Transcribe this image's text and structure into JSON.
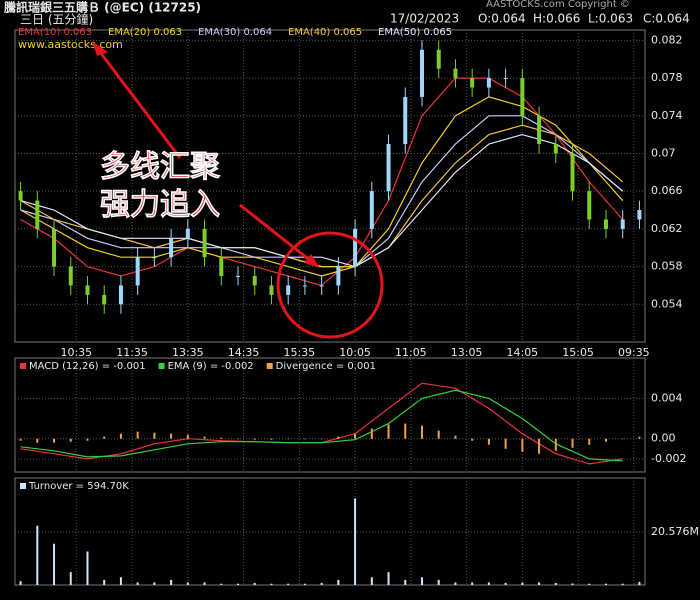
{
  "chart_data": [
    {
      "type": "candlestick",
      "title": "騰訊瑞銀三五購Ｂ (@EC) (12725)",
      "date": "17/02/2023",
      "ohlc": [
        "O:0.064",
        "H:0.066",
        "L:0.063",
        "C:0.064"
      ],
      "subtitle": "三日 (五分鐘)",
      "watermark": "www.aastocks.com",
      "copyright": "AASTOCKS.com Copyright ©",
      "annotations": [
        "多线汇聚",
        "强力追入"
      ],
      "up_color": "#9fd8ff",
      "down_color": "#7ccf2a",
      "x": [
        0,
        3,
        6,
        9,
        12,
        15,
        18,
        21,
        24,
        27,
        30,
        33,
        36,
        39,
        42,
        45,
        48,
        51,
        54,
        57,
        60,
        63,
        66,
        69,
        72,
        75,
        78,
        81,
        84,
        87,
        90,
        93,
        96,
        99,
        102,
        105,
        108,
        111
      ],
      "open": [
        0.066,
        0.065,
        0.062,
        0.058,
        0.056,
        0.055,
        0.054,
        0.056,
        0.059,
        0.059,
        0.061,
        0.062,
        0.059,
        0.057,
        0.057,
        0.056,
        0.055,
        0.056,
        0.056,
        0.056,
        0.058,
        0.062,
        0.066,
        0.071,
        0.076,
        0.081,
        0.079,
        0.078,
        0.077,
        0.078,
        0.078,
        0.074,
        0.071,
        0.07,
        0.066,
        0.063,
        0.062,
        0.063
      ],
      "high": [
        0.067,
        0.066,
        0.063,
        0.059,
        0.057,
        0.056,
        0.057,
        0.06,
        0.06,
        0.062,
        0.063,
        0.063,
        0.06,
        0.058,
        0.058,
        0.057,
        0.057,
        0.057,
        0.057,
        0.059,
        0.063,
        0.067,
        0.072,
        0.077,
        0.082,
        0.082,
        0.08,
        0.079,
        0.079,
        0.079,
        0.079,
        0.075,
        0.072,
        0.071,
        0.067,
        0.064,
        0.064,
        0.065
      ],
      "low": [
        0.064,
        0.061,
        0.057,
        0.055,
        0.054,
        0.053,
        0.053,
        0.055,
        0.058,
        0.058,
        0.06,
        0.058,
        0.056,
        0.056,
        0.055,
        0.054,
        0.054,
        0.055,
        0.055,
        0.055,
        0.057,
        0.061,
        0.065,
        0.07,
        0.075,
        0.078,
        0.077,
        0.076,
        0.076,
        0.077,
        0.073,
        0.07,
        0.069,
        0.065,
        0.062,
        0.061,
        0.061,
        0.062
      ],
      "close": [
        0.065,
        0.062,
        0.058,
        0.056,
        0.055,
        0.054,
        0.056,
        0.059,
        0.059,
        0.061,
        0.062,
        0.059,
        0.057,
        0.057,
        0.056,
        0.055,
        0.056,
        0.056,
        0.056,
        0.058,
        0.062,
        0.066,
        0.071,
        0.076,
        0.081,
        0.079,
        0.078,
        0.077,
        0.078,
        0.078,
        0.074,
        0.071,
        0.07,
        0.066,
        0.063,
        0.062,
        0.063,
        0.064
      ],
      "series": [
        {
          "name": "EMA(10) 0.063",
          "color": "#e8343a",
          "x": [
            0,
            6,
            12,
            18,
            24,
            30,
            36,
            42,
            48,
            54,
            60,
            66,
            72,
            78,
            84,
            90,
            96,
            102,
            108
          ],
          "values": [
            0.063,
            0.061,
            0.058,
            0.057,
            0.058,
            0.06,
            0.059,
            0.058,
            0.057,
            0.056,
            0.059,
            0.065,
            0.074,
            0.078,
            0.078,
            0.076,
            0.072,
            0.067,
            0.063
          ]
        },
        {
          "name": "EMA(20) 0.063",
          "color": "#f2d21e",
          "x": [
            0,
            6,
            12,
            18,
            24,
            30,
            36,
            42,
            48,
            54,
            60,
            66,
            72,
            78,
            84,
            90,
            96,
            102,
            108
          ],
          "values": [
            0.064,
            0.062,
            0.06,
            0.059,
            0.059,
            0.06,
            0.059,
            0.059,
            0.058,
            0.057,
            0.058,
            0.062,
            0.069,
            0.074,
            0.076,
            0.075,
            0.073,
            0.069,
            0.065
          ]
        },
        {
          "name": "EMA(30) 0.064",
          "color": "#c8c8ff",
          "x": [
            0,
            6,
            12,
            18,
            24,
            30,
            36,
            42,
            48,
            54,
            60,
            66,
            72,
            78,
            84,
            90,
            96,
            102,
            108
          ],
          "values": [
            0.064,
            0.063,
            0.061,
            0.06,
            0.06,
            0.06,
            0.06,
            0.059,
            0.059,
            0.058,
            0.058,
            0.061,
            0.067,
            0.071,
            0.074,
            0.074,
            0.072,
            0.069,
            0.066
          ]
        },
        {
          "name": "EMA(40) 0.065",
          "color": "#f5c04a",
          "x": [
            0,
            6,
            12,
            18,
            24,
            30,
            36,
            42,
            48,
            54,
            60,
            66,
            72,
            78,
            84,
            90,
            96,
            102,
            108
          ],
          "values": [
            0.065,
            0.063,
            0.062,
            0.061,
            0.06,
            0.061,
            0.06,
            0.06,
            0.059,
            0.058,
            0.058,
            0.06,
            0.065,
            0.069,
            0.072,
            0.073,
            0.072,
            0.07,
            0.067
          ]
        },
        {
          "name": "EMA(50) 0.065",
          "color": "#e6e0ff",
          "x": [
            0,
            6,
            12,
            18,
            24,
            30,
            36,
            42,
            48,
            54,
            60,
            66,
            72,
            78,
            84,
            90,
            96,
            102,
            108
          ],
          "values": [
            0.065,
            0.064,
            0.062,
            0.061,
            0.061,
            0.061,
            0.06,
            0.06,
            0.059,
            0.059,
            0.058,
            0.06,
            0.064,
            0.068,
            0.071,
            0.072,
            0.071,
            0.069,
            0.066
          ]
        }
      ],
      "xlim": [
        -1,
        112
      ],
      "xticks": [
        {
          "value": 10,
          "label": "10:35"
        },
        {
          "value": 20,
          "label": "11:35"
        },
        {
          "value": 30,
          "label": "13:35"
        },
        {
          "value": 40,
          "label": "14:35"
        },
        {
          "value": 50,
          "label": "15:35"
        },
        {
          "value": 60,
          "label": "10:05"
        },
        {
          "value": 70,
          "label": "11:05"
        },
        {
          "value": 80,
          "label": "13:05"
        },
        {
          "value": 90,
          "label": "14:05"
        },
        {
          "value": 100,
          "label": "15:05"
        },
        {
          "value": 110,
          "label": "09:35"
        }
      ],
      "ylim": [
        0.05,
        0.0831
      ],
      "yticks": [
        0.054,
        0.058,
        0.062,
        0.066,
        0.07,
        0.074,
        0.078,
        0.082
      ],
      "grid": true
    },
    {
      "type": "line",
      "xlim": [
        -1,
        112
      ],
      "ylim": [
        -0.0033,
        0.008
      ],
      "yticks": [
        {
          "value": 0.004,
          "label": "0.004"
        },
        {
          "value": 0,
          "label": "0.00"
        },
        {
          "value": -0.002,
          "label": "-0.002"
        }
      ],
      "grid": true,
      "series": [
        {
          "name": "MACD (12,26) = -0.001",
          "color": "#e8343a",
          "x": [
            0,
            6,
            12,
            18,
            24,
            30,
            36,
            42,
            48,
            54,
            60,
            66,
            72,
            78,
            84,
            90,
            96,
            102,
            108
          ],
          "values": [
            -0.001,
            -0.0015,
            -0.002,
            -0.0015,
            -0.0005,
            0.0,
            -0.0002,
            -0.0003,
            -0.0004,
            -0.0004,
            0.0005,
            0.003,
            0.0055,
            0.005,
            0.003,
            0.0005,
            -0.0015,
            -0.0025,
            -0.002
          ]
        },
        {
          "name": "EMA (9) = -0.002",
          "color": "#33d13a",
          "x": [
            0,
            6,
            12,
            18,
            24,
            30,
            36,
            42,
            48,
            54,
            60,
            66,
            72,
            78,
            84,
            90,
            96,
            102,
            108
          ],
          "values": [
            -0.0008,
            -0.0012,
            -0.0018,
            -0.0017,
            -0.0011,
            -0.0005,
            -0.0003,
            -0.0003,
            -0.0004,
            -0.0004,
            -0.0001,
            0.0015,
            0.004,
            0.0048,
            0.004,
            0.002,
            -0.0005,
            -0.002,
            -0.0022
          ]
        },
        {
          "name": "Divergence = 0.001",
          "color": "#f0a04a",
          "style": "bar",
          "x": [
            0,
            3,
            6,
            9,
            12,
            15,
            18,
            21,
            24,
            27,
            30,
            33,
            36,
            39,
            42,
            45,
            48,
            51,
            54,
            57,
            60,
            63,
            66,
            69,
            72,
            75,
            78,
            81,
            84,
            87,
            90,
            93,
            96,
            99,
            102,
            105,
            108,
            111
          ],
          "values": [
            -0.0002,
            -0.0004,
            -0.0004,
            -0.0003,
            -0.0002,
            0.0002,
            0.0005,
            0.0007,
            0.0006,
            0.0005,
            0.0004,
            0.0002,
            0.0001,
            0,
            -0.0001,
            -0.0001,
            0,
            0,
            0,
            0.0002,
            0.0005,
            0.001,
            0.0014,
            0.0015,
            0.0013,
            0.0008,
            0.0003,
            -0.0002,
            -0.0006,
            -0.001,
            -0.0013,
            -0.0015,
            -0.0012,
            -0.0009,
            -0.0006,
            -0.0003,
            0,
            0.0002
          ]
        }
      ]
    },
    {
      "type": "bar",
      "xlim": [
        -1,
        112
      ],
      "ylim": [
        0,
        41.5
      ],
      "yticks": [
        {
          "value": 20.576,
          "label": "20.576M"
        }
      ],
      "grid": true,
      "series": [
        {
          "name": "Turnover = 594.70K",
          "color": "#c8e8ff",
          "x": [
            0,
            3,
            6,
            9,
            12,
            15,
            18,
            21,
            24,
            27,
            30,
            33,
            36,
            39,
            42,
            45,
            48,
            51,
            54,
            57,
            60,
            63,
            66,
            69,
            72,
            75,
            78,
            81,
            84,
            87,
            90,
            93,
            96,
            99,
            102,
            105,
            108,
            111
          ],
          "values": [
            1.5,
            23,
            16,
            5,
            13,
            2,
            3,
            1,
            1,
            2,
            1,
            1,
            0.5,
            0.5,
            0.8,
            0.5,
            0.5,
            0.5,
            0.8,
            2,
            33.6,
            3,
            5,
            2,
            3,
            2,
            1,
            1,
            1,
            0.8,
            1,
            1,
            0.8,
            0.6,
            0.5,
            0.5,
            0.5,
            1.2
          ]
        }
      ]
    }
  ]
}
